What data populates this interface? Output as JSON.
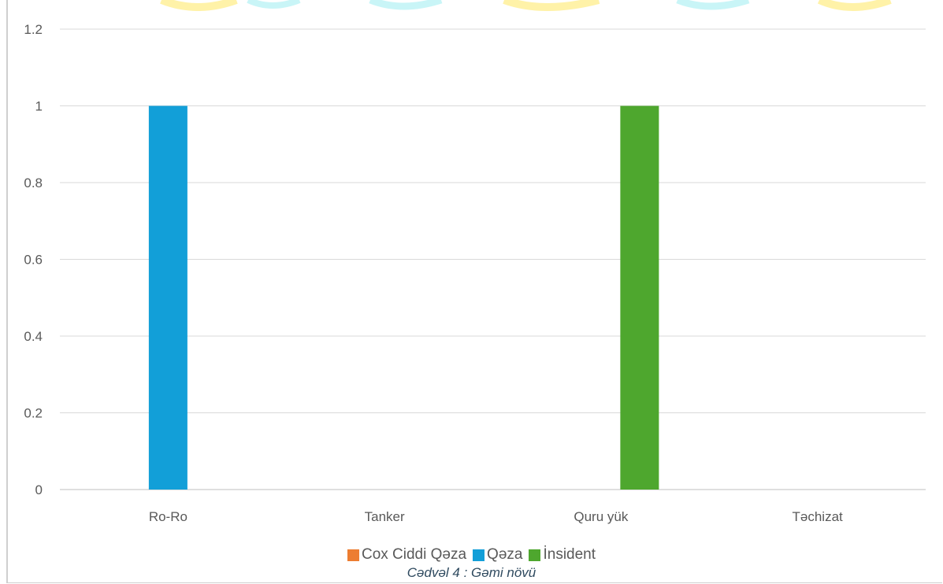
{
  "chart_data": {
    "type": "bar",
    "categories": [
      "Ro-Ro",
      "Tanker",
      "Quru yük",
      "Təchizat"
    ],
    "series": [
      {
        "name": "Cox Ciddi Qəza",
        "color": "#ED7D31",
        "values": [
          0,
          0,
          0,
          0
        ]
      },
      {
        "name": "Qəza",
        "color": "#129FD8",
        "values": [
          1,
          0,
          0,
          0
        ]
      },
      {
        "name": "İnsident",
        "color": "#4EA72E",
        "values": [
          0,
          0,
          1,
          0
        ]
      }
    ],
    "y_ticks": [
      "0",
      "0.2",
      "0.4",
      "0.6",
      "0.8",
      "1",
      "1.2"
    ],
    "ylim": [
      0,
      1.2
    ],
    "grid": true,
    "legend_position": "bottom",
    "caption": "Cədvəl 4 : Gəmi  növü"
  }
}
